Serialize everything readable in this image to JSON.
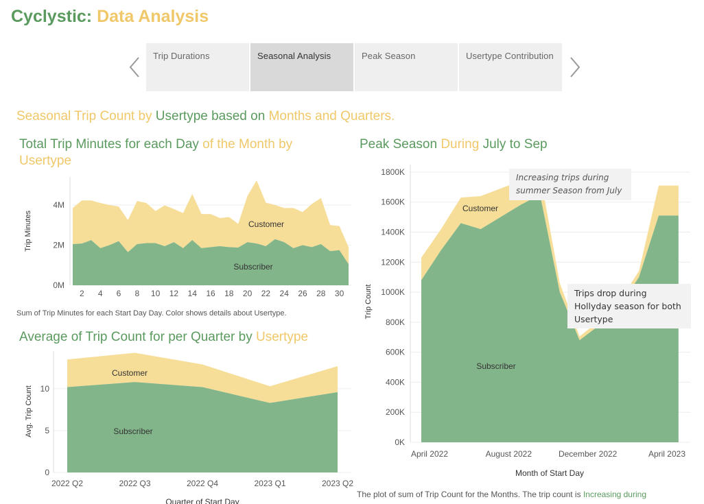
{
  "header": {
    "title_part1": "Cyclystic:",
    "title_part2": "Data Analysis"
  },
  "tabs": [
    {
      "label": "Trip Durations",
      "active": false
    },
    {
      "label": "Seasonal Analysis",
      "active": true
    },
    {
      "label": "Peak Season",
      "active": false
    },
    {
      "label": "Usertype Contribution",
      "active": false
    }
  ],
  "section": {
    "p1": "Seasonal Trip Count by ",
    "p2": "Usertype",
    "p3": " based on ",
    "p4": "Months and Quarters."
  },
  "colors": {
    "subscriber": "#83b58a",
    "customer": "#f6dd98",
    "green_text": "#5a9a5e",
    "gold_text": "#f0c869"
  },
  "chart1": {
    "title_p1": "Total Trip Minutes for each Day ",
    "title_p2": "of the Month by",
    "title_p3": "Usertype",
    "caption": "Sum of Trip Minutes for each Start Day Day. Color shows details about Usertype.",
    "chart_data": {
      "type": "area",
      "x": [
        1,
        2,
        3,
        4,
        5,
        6,
        7,
        8,
        9,
        10,
        11,
        12,
        13,
        14,
        15,
        16,
        17,
        18,
        19,
        20,
        21,
        22,
        23,
        24,
        25,
        26,
        27,
        28,
        29,
        30,
        31
      ],
      "xticks": [
        2,
        4,
        6,
        8,
        10,
        12,
        14,
        16,
        18,
        20,
        22,
        24,
        26,
        28,
        30
      ],
      "yticks": [
        {
          "v": 0,
          "label": "0M"
        },
        {
          "v": 2000000,
          "label": "2M"
        },
        {
          "v": 4000000,
          "label": "4M"
        }
      ],
      "ylim": [
        0,
        5400000
      ],
      "ylabel": "Trip Minutes",
      "series": [
        {
          "name": "Subscriber",
          "values": [
            2050000,
            2080000,
            2250000,
            1850000,
            2000000,
            2200000,
            1650000,
            2050000,
            2100000,
            2100000,
            1950000,
            2150000,
            1850000,
            2250000,
            1850000,
            1900000,
            1950000,
            1900000,
            1880000,
            2150000,
            2080000,
            1950000,
            2300000,
            2150000,
            1850000,
            2000000,
            1900000,
            2050000,
            1700000,
            1750000,
            1050000
          ]
        },
        {
          "name": "Customer",
          "values": [
            1800000,
            2150000,
            1980000,
            2250000,
            2000000,
            1720000,
            1600000,
            2150000,
            2000000,
            1600000,
            2030000,
            1650000,
            1750000,
            2300000,
            1700000,
            1650000,
            1400000,
            1500000,
            1180000,
            2300000,
            3150000,
            2170000,
            1700000,
            1700000,
            2000000,
            1650000,
            2150000,
            2300000,
            1300000,
            1200000,
            850000
          ]
        }
      ],
      "labels": {
        "customer": "Customer",
        "subscriber": "Subscriber"
      }
    }
  },
  "chart2": {
    "title_p1": "Average of Trip Count for per Quarter by ",
    "title_p2": "Usertype",
    "chart_data": {
      "type": "area",
      "categories": [
        "2022 Q2",
        "2022 Q3",
        "2022 Q4",
        "2023 Q1",
        "2023 Q2"
      ],
      "yticks": [
        0,
        5,
        10
      ],
      "ylim": [
        0,
        14.5
      ],
      "ylabel": "Avg. Trip Count",
      "xlabel": "Quarter of Start Day",
      "series": [
        {
          "name": "Subscriber",
          "values": [
            10.2,
            10.8,
            10.2,
            8.3,
            9.6
          ]
        },
        {
          "name": "Customer",
          "values": [
            3.3,
            3.5,
            2.7,
            2.0,
            3.1
          ]
        }
      ],
      "labels": {
        "customer": "Customer",
        "subscriber": "Subscriber"
      }
    }
  },
  "chart3": {
    "title_p1": "Peak Season ",
    "title_p2": "During",
    "title_p3": " July to Sep",
    "caption_p1": "The plot of sum of Trip Count for the Months. The trip count is ",
    "caption_p2": "Increasing during",
    "callout1": "Increasing trips during summer Season from July",
    "callout2": "Trips drop during Hollyday season for both Usertype",
    "chart_data": {
      "type": "area",
      "x": [
        "2022-04",
        "2022-05",
        "2022-06",
        "2022-07",
        "2022-08",
        "2022-09",
        "2022-10",
        "2022-11",
        "2022-12",
        "2023-01",
        "2023-02",
        "2023-03",
        "2023-04",
        "2023-05"
      ],
      "xticks": [
        {
          "i": 0,
          "label": "April 2022"
        },
        {
          "i": 4,
          "label": "August 2022"
        },
        {
          "i": 8,
          "label": "December 2022"
        },
        {
          "i": 12,
          "label": "April 2023"
        }
      ],
      "yticks": [
        {
          "v": 0,
          "label": "0K"
        },
        {
          "v": 200000,
          "label": "200K"
        },
        {
          "v": 400000,
          "label": "400K"
        },
        {
          "v": 600000,
          "label": "600K"
        },
        {
          "v": 800000,
          "label": "800K"
        },
        {
          "v": 1000000,
          "label": "1000K"
        },
        {
          "v": 1200000,
          "label": "1200K"
        },
        {
          "v": 1400000,
          "label": "1400K"
        },
        {
          "v": 1600000,
          "label": "1600K"
        },
        {
          "v": 1800000,
          "label": "1800K"
        }
      ],
      "ylim": [
        0,
        1850000
      ],
      "ylabel": "Trip Count",
      "xlabel": "Month of Start Day",
      "series": [
        {
          "name": "Subscriber",
          "values": [
            1080000,
            1280000,
            1460000,
            1420000,
            1500000,
            1580000,
            1650000,
            1000000,
            680000,
            780000,
            900000,
            1100000,
            1510000,
            1510000
          ]
        },
        {
          "name": "Customer",
          "values": [
            150000,
            140000,
            170000,
            220000,
            190000,
            160000,
            140000,
            60000,
            25000,
            30000,
            35000,
            40000,
            200000,
            200000
          ]
        }
      ],
      "labels": {
        "customer": "Customer",
        "subscriber": "Subscriber"
      }
    }
  }
}
